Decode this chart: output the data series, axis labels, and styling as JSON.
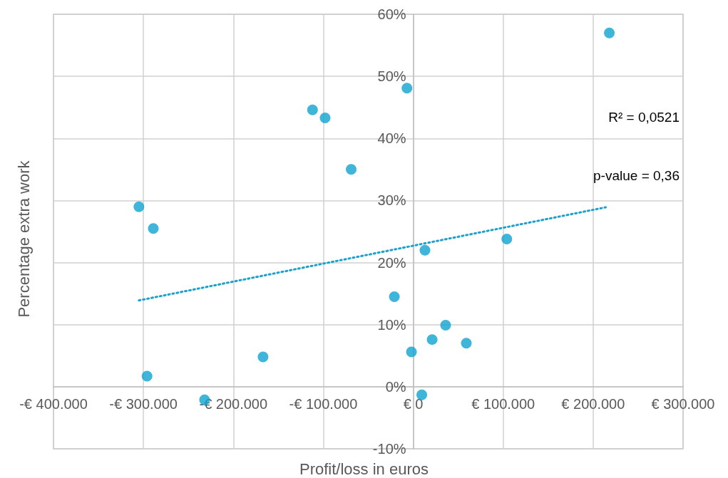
{
  "chart_data": {
    "type": "scatter",
    "xlabel": "Profit/loss in euros",
    "ylabel": "Percentage extra work",
    "annotations": [
      "R² = 0,0521",
      "p-value = 0,36"
    ],
    "xlim": [
      -400000,
      300000
    ],
    "xticks": [
      {
        "value": -400000,
        "label": "-€ 400.000"
      },
      {
        "value": -300000,
        "label": "-€ 300.000"
      },
      {
        "value": -200000,
        "label": "-€ 200.000"
      },
      {
        "value": -100000,
        "label": "-€ 100.000"
      },
      {
        "value": 0,
        "label": "€ 0"
      },
      {
        "value": 100000,
        "label": "€ 100.000"
      },
      {
        "value": 200000,
        "label": "€ 200.000"
      },
      {
        "value": 300000,
        "label": "€ 300.000"
      }
    ],
    "ylim": [
      -10,
      60
    ],
    "yticks": [
      {
        "value": -10,
        "label": "-10%"
      },
      {
        "value": 0,
        "label": "0%"
      },
      {
        "value": 10,
        "label": "10%"
      },
      {
        "value": 20,
        "label": "20%"
      },
      {
        "value": 30,
        "label": "30%"
      },
      {
        "value": 40,
        "label": "40%"
      },
      {
        "value": 50,
        "label": "50%"
      },
      {
        "value": 60,
        "label": "60%"
      }
    ],
    "grid": true,
    "series": [
      {
        "color": "#0fa3d1",
        "marker": "circle",
        "x": [
          218000,
          -7000,
          -112000,
          -98000,
          -69000,
          -305000,
          -289000,
          13000,
          104000,
          -21000,
          36000,
          21000,
          59000,
          -2000,
          -167000,
          -296000,
          -232000,
          9500
        ],
        "values": [
          57.0,
          48.1,
          44.6,
          43.3,
          35.0,
          29.0,
          25.5,
          22.0,
          23.8,
          14.5,
          9.9,
          7.6,
          7.0,
          5.6,
          4.8,
          1.7,
          -2.1,
          -1.3
        ]
      },
      {
        "type": "line",
        "color": "#1ba1d0",
        "marker": "none",
        "line_style": "dotted",
        "x": [
          -305000,
          214000
        ],
        "values": [
          13.9,
          28.9
        ]
      }
    ]
  }
}
